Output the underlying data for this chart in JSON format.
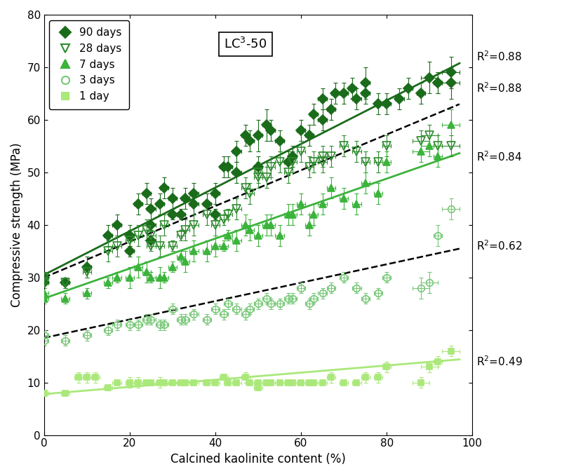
{
  "title": "LC$^3$-50",
  "xlabel": "Calcined kaolinite content (%)",
  "ylabel": "Compressive strength (MPa)",
  "xlim": [
    0,
    100
  ],
  "ylim": [
    0,
    80
  ],
  "xticks": [
    0,
    20,
    40,
    60,
    80,
    100
  ],
  "yticks": [
    0,
    10,
    20,
    30,
    40,
    50,
    60,
    70,
    80
  ],
  "series": [
    {
      "label": "90 days",
      "color": "#1a6b1a",
      "marker": "D",
      "filled": true,
      "markersize": 7,
      "trendline": {
        "slope": 0.415,
        "intercept": 30.5,
        "r2": "R$^2$=0.88",
        "r2_x": 101,
        "r2_y": 72,
        "style": "solid"
      },
      "x": [
        0,
        0,
        5,
        10,
        15,
        17,
        20,
        20,
        22,
        24,
        25,
        25,
        25,
        27,
        28,
        30,
        30,
        32,
        33,
        35,
        35,
        38,
        40,
        40,
        42,
        43,
        45,
        45,
        47,
        48,
        50,
        50,
        52,
        53,
        55,
        57,
        58,
        60,
        62,
        63,
        65,
        65,
        67,
        68,
        70,
        72,
        73,
        75,
        75,
        78,
        80,
        83,
        85,
        88,
        90,
        92,
        92,
        95,
        95
      ],
      "y": [
        30,
        29,
        29,
        32,
        38,
        40,
        35,
        38,
        44,
        46,
        37,
        40,
        43,
        44,
        47,
        42,
        45,
        42,
        45,
        44,
        46,
        44,
        46,
        42,
        51,
        51,
        54,
        50,
        57,
        56,
        51,
        57,
        59,
        58,
        56,
        52,
        53,
        58,
        57,
        61,
        64,
        60,
        62,
        65,
        65,
        66,
        64,
        67,
        65,
        63,
        63,
        64,
        66,
        65,
        68,
        67,
        67,
        69,
        67
      ],
      "xerr": [
        1,
        1,
        1,
        1,
        1,
        1,
        1,
        1,
        1,
        1,
        1,
        1,
        1,
        1,
        1,
        1,
        1,
        1,
        1,
        1,
        1,
        1,
        1,
        1,
        1,
        1,
        1,
        1,
        1,
        1,
        1,
        1,
        1,
        1,
        1,
        1,
        1,
        1,
        1,
        1,
        1,
        1,
        1,
        1,
        1,
        1,
        1,
        1,
        1,
        1,
        1,
        1,
        1,
        1,
        2,
        1,
        1,
        2,
        2
      ],
      "yerr": [
        1,
        1,
        1,
        2,
        2,
        2,
        1,
        2,
        2,
        2,
        1,
        1,
        2,
        2,
        2,
        1,
        2,
        1,
        2,
        2,
        2,
        2,
        2,
        1,
        2,
        2,
        2,
        2,
        2,
        2,
        2,
        3,
        3,
        2,
        2,
        2,
        2,
        2,
        2,
        2,
        2,
        2,
        2,
        2,
        2,
        2,
        2,
        3,
        2,
        2,
        2,
        2,
        2,
        2,
        3,
        2,
        2,
        3,
        3
      ]
    },
    {
      "label": "28 days",
      "color": "#2e8b2e",
      "marker": "v",
      "filled": false,
      "markersize": 8,
      "trendline": {
        "slope": 0.34,
        "intercept": 30.0,
        "r2": "R$^2$=0.88",
        "r2_x": 101,
        "r2_y": 66,
        "style": "dashed_black"
      },
      "x": [
        0,
        0,
        5,
        10,
        15,
        17,
        20,
        22,
        24,
        25,
        25,
        27,
        28,
        30,
        32,
        33,
        35,
        38,
        40,
        42,
        43,
        45,
        47,
        48,
        50,
        50,
        52,
        53,
        55,
        57,
        58,
        60,
        62,
        63,
        65,
        65,
        67,
        70,
        73,
        75,
        78,
        80,
        88,
        90,
        92,
        95
      ],
      "y": [
        30,
        29,
        29,
        31,
        35,
        36,
        37,
        38,
        39,
        38,
        36,
        36,
        40,
        36,
        38,
        39,
        40,
        42,
        40,
        41,
        42,
        43,
        47,
        46,
        50,
        49,
        49,
        51,
        52,
        50,
        52,
        54,
        51,
        52,
        52,
        53,
        53,
        55,
        54,
        52,
        52,
        55,
        56,
        57,
        55,
        55
      ],
      "xerr": [
        1,
        1,
        1,
        1,
        1,
        1,
        1,
        1,
        1,
        1,
        1,
        1,
        1,
        1,
        1,
        1,
        1,
        1,
        1,
        1,
        1,
        1,
        1,
        1,
        1,
        1,
        1,
        1,
        1,
        1,
        1,
        1,
        1,
        1,
        1,
        1,
        1,
        1,
        1,
        1,
        1,
        1,
        2,
        2,
        1,
        2
      ],
      "yerr": [
        1,
        1,
        1,
        1,
        2,
        2,
        2,
        2,
        2,
        1,
        1,
        2,
        2,
        1,
        1,
        2,
        2,
        2,
        2,
        1,
        1,
        2,
        2,
        2,
        2,
        2,
        2,
        2,
        2,
        2,
        2,
        2,
        2,
        2,
        2,
        2,
        2,
        2,
        2,
        2,
        2,
        2,
        2,
        2,
        2,
        2
      ]
    },
    {
      "label": "7 days",
      "color": "#3cb33c",
      "marker": "^",
      "filled": true,
      "markersize": 7,
      "trendline": {
        "slope": 0.285,
        "intercept": 26.0,
        "r2": "R$^2$=0.84",
        "r2_x": 101,
        "r2_y": 53,
        "style": "solid"
      },
      "x": [
        0,
        0,
        5,
        10,
        15,
        17,
        20,
        22,
        24,
        25,
        27,
        28,
        30,
        32,
        33,
        35,
        38,
        40,
        42,
        43,
        45,
        47,
        48,
        50,
        52,
        53,
        55,
        57,
        58,
        60,
        62,
        63,
        65,
        67,
        70,
        73,
        75,
        78,
        80,
        88,
        90,
        92,
        95
      ],
      "y": [
        27,
        26,
        26,
        27,
        29,
        30,
        30,
        32,
        31,
        30,
        30,
        30,
        32,
        34,
        33,
        35,
        35,
        36,
        36,
        38,
        37,
        40,
        39,
        38,
        40,
        40,
        38,
        42,
        42,
        44,
        40,
        42,
        44,
        47,
        45,
        44,
        48,
        46,
        52,
        54,
        55,
        53,
        59
      ],
      "xerr": [
        1,
        1,
        1,
        1,
        1,
        1,
        1,
        1,
        1,
        1,
        1,
        1,
        1,
        1,
        1,
        1,
        1,
        1,
        1,
        1,
        1,
        1,
        1,
        1,
        1,
        1,
        1,
        1,
        1,
        1,
        1,
        1,
        1,
        1,
        1,
        1,
        1,
        1,
        1,
        2,
        2,
        1,
        2
      ],
      "yerr": [
        1,
        1,
        1,
        1,
        1,
        1,
        2,
        2,
        2,
        1,
        2,
        1,
        1,
        1,
        2,
        2,
        2,
        2,
        1,
        1,
        2,
        2,
        2,
        2,
        2,
        2,
        2,
        2,
        2,
        2,
        2,
        2,
        2,
        2,
        2,
        2,
        2,
        2,
        2,
        2,
        2,
        2,
        3
      ]
    },
    {
      "label": "3 days",
      "color": "#78c878",
      "marker": "o",
      "filled": false,
      "markersize": 7,
      "trendline": {
        "slope": 0.175,
        "intercept": 18.5,
        "r2": "R$^2$=0.62",
        "r2_x": 101,
        "r2_y": 36,
        "style": "dashed_black"
      },
      "x": [
        0,
        0,
        5,
        10,
        15,
        17,
        20,
        22,
        24,
        25,
        27,
        28,
        30,
        32,
        33,
        35,
        38,
        40,
        42,
        43,
        45,
        47,
        48,
        50,
        52,
        53,
        55,
        57,
        58,
        60,
        62,
        63,
        65,
        67,
        70,
        73,
        75,
        78,
        80,
        88,
        90,
        92,
        95
      ],
      "y": [
        19,
        18,
        18,
        19,
        20,
        21,
        21,
        21,
        22,
        22,
        21,
        21,
        24,
        22,
        22,
        23,
        22,
        24,
        23,
        25,
        24,
        23,
        24,
        25,
        26,
        25,
        25,
        26,
        26,
        28,
        25,
        26,
        27,
        28,
        30,
        28,
        26,
        27,
        30,
        28,
        29,
        38,
        43
      ],
      "xerr": [
        1,
        1,
        1,
        1,
        1,
        1,
        1,
        1,
        1,
        1,
        1,
        1,
        1,
        1,
        1,
        1,
        1,
        1,
        1,
        1,
        1,
        1,
        1,
        1,
        1,
        1,
        1,
        1,
        1,
        1,
        1,
        1,
        1,
        1,
        1,
        1,
        1,
        1,
        1,
        2,
        2,
        1,
        2
      ],
      "yerr": [
        1,
        1,
        1,
        1,
        1,
        1,
        1,
        1,
        1,
        1,
        1,
        1,
        1,
        1,
        1,
        1,
        1,
        1,
        1,
        1,
        1,
        1,
        1,
        1,
        1,
        1,
        1,
        1,
        1,
        1,
        1,
        1,
        1,
        1,
        1,
        1,
        1,
        1,
        1,
        2,
        2,
        2,
        2
      ]
    },
    {
      "label": "1 day",
      "color": "#aae87a",
      "marker": "s",
      "filled": true,
      "markersize": 6,
      "trendline": {
        "slope": 0.068,
        "intercept": 7.8,
        "r2": "R$^2$=0.49",
        "r2_x": 101,
        "r2_y": 14,
        "style": "solid"
      },
      "x": [
        0,
        0,
        5,
        8,
        10,
        12,
        15,
        17,
        20,
        22,
        24,
        25,
        27,
        28,
        30,
        32,
        33,
        35,
        38,
        40,
        42,
        43,
        45,
        47,
        48,
        50,
        50,
        52,
        53,
        55,
        57,
        58,
        60,
        62,
        63,
        65,
        67,
        70,
        73,
        75,
        78,
        80,
        88,
        90,
        92,
        95
      ],
      "y": [
        8,
        8,
        8,
        11,
        11,
        11,
        9,
        10,
        10,
        10,
        10,
        10,
        10,
        10,
        10,
        10,
        10,
        10,
        10,
        10,
        11,
        10,
        10,
        11,
        10,
        9,
        10,
        10,
        10,
        10,
        10,
        10,
        10,
        10,
        10,
        10,
        11,
        10,
        10,
        11,
        11,
        13,
        10,
        13,
        14,
        16
      ],
      "xerr": [
        1,
        1,
        1,
        1,
        1,
        1,
        1,
        1,
        1,
        1,
        1,
        1,
        1,
        1,
        1,
        1,
        1,
        1,
        1,
        1,
        1,
        1,
        1,
        1,
        1,
        1,
        1,
        1,
        1,
        1,
        1,
        1,
        1,
        1,
        1,
        1,
        1,
        1,
        1,
        1,
        1,
        1,
        2,
        2,
        1,
        2
      ],
      "yerr": [
        0.5,
        0.5,
        0.5,
        1,
        1,
        1,
        0.5,
        0.5,
        1,
        1,
        0.5,
        0.5,
        1,
        0.5,
        0.5,
        0.5,
        0.5,
        0.5,
        0.5,
        0.5,
        0.5,
        0.5,
        0.5,
        1,
        0.5,
        0.5,
        0.5,
        0.5,
        0.5,
        0.5,
        0.5,
        0.5,
        0.5,
        0.5,
        0.5,
        0.5,
        1,
        0.5,
        0.5,
        1,
        1,
        1,
        1,
        1,
        1,
        1
      ]
    }
  ]
}
